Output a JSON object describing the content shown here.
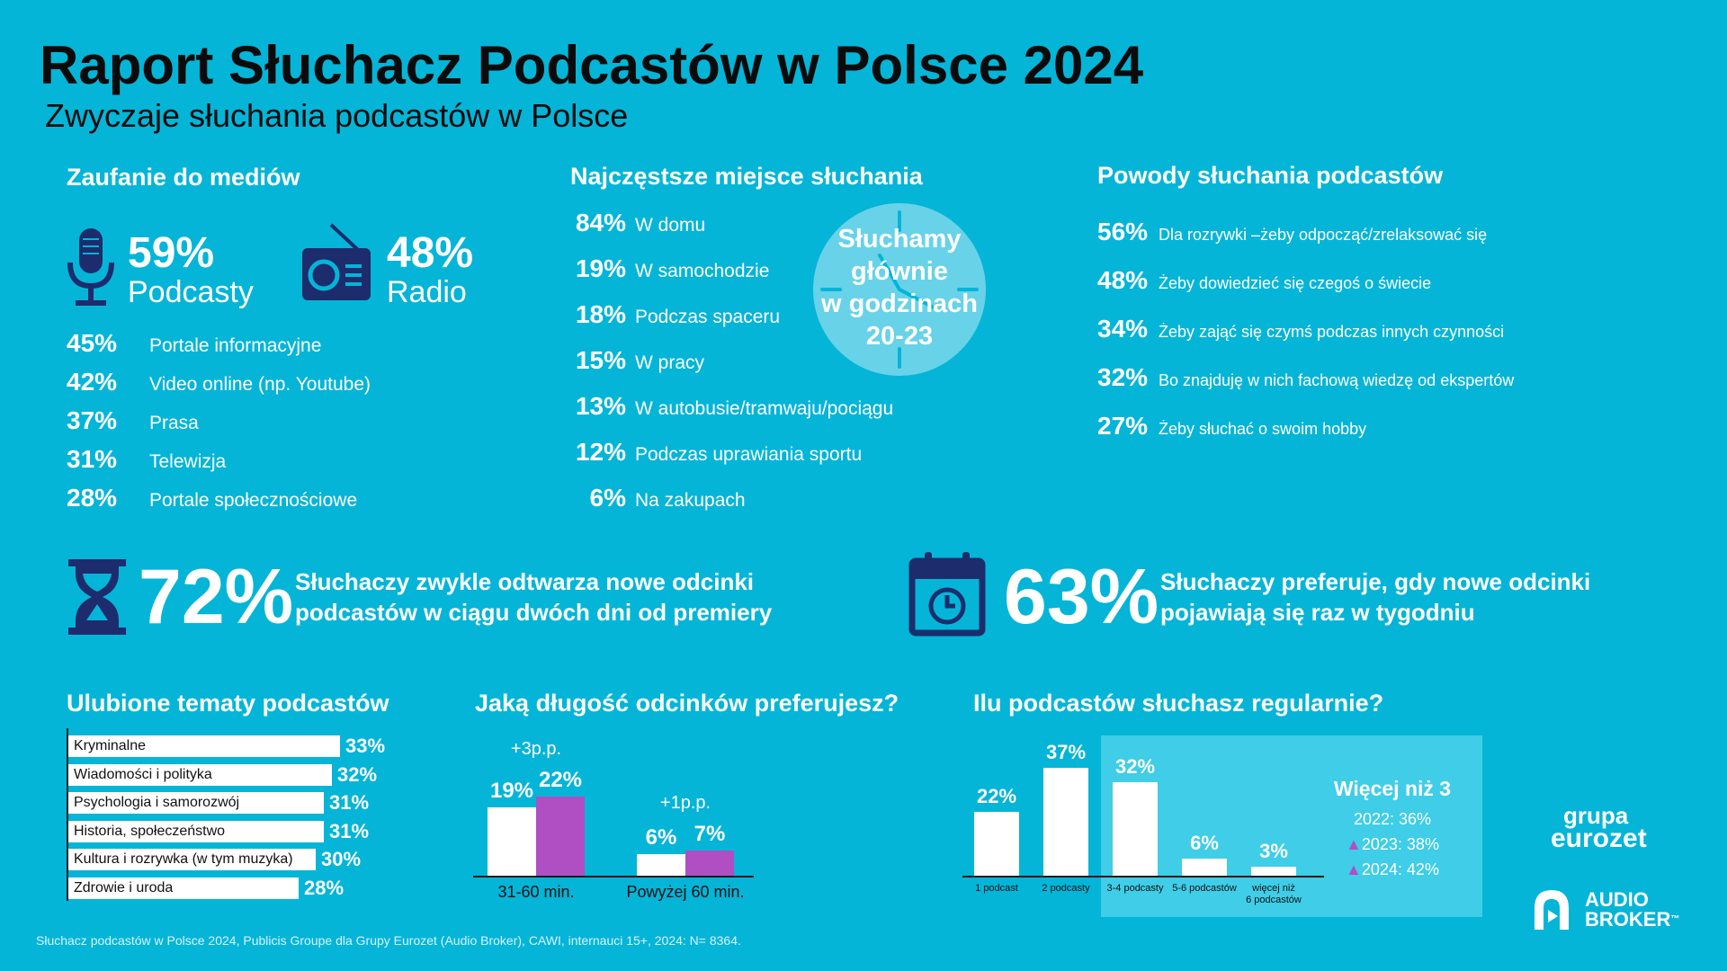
{
  "header": {
    "title": "Raport Słuchacz Podcastów w Polsce 2024",
    "subtitle": "Zwyczaje słuchania podcastów w Polsce"
  },
  "trust": {
    "title": "Zaufanie do mediów",
    "podcasts": {
      "value": "59%",
      "label": "Podcasty"
    },
    "radio": {
      "value": "48%",
      "label": "Radio"
    },
    "items": [
      {
        "value": "45%",
        "label": "Portale informacyjne"
      },
      {
        "value": "42%",
        "label": "Video online (np. Youtube)"
      },
      {
        "value": "37%",
        "label": "Prasa"
      },
      {
        "value": "31%",
        "label": "Telewizja"
      },
      {
        "value": "28%",
        "label": "Portale społecznościowe"
      }
    ]
  },
  "places": {
    "title": "Najczęstsze miejsce słuchania",
    "items": [
      {
        "value": "84%",
        "label": "W domu"
      },
      {
        "value": "19%",
        "label": "W samochodzie"
      },
      {
        "value": "18%",
        "label": "Podczas spaceru"
      },
      {
        "value": "15%",
        "label": "W pracy"
      },
      {
        "value": "13%",
        "label": "W autobusie/tramwaju/pociągu"
      },
      {
        "value": "12%",
        "label": "Podczas uprawiania sportu"
      },
      {
        "value": "6%",
        "label": "Na zakupach"
      }
    ],
    "clock_text": [
      "Słuchamy",
      "głównie",
      "w godzinach",
      "20-23"
    ]
  },
  "reasons": {
    "title": "Powody słuchania podcastów",
    "items": [
      {
        "value": "56%",
        "label": "Dla rozrywki –żeby odpocząć/zrelaksować się"
      },
      {
        "value": "48%",
        "label": "Żeby dowiedzieć się czegoś o świecie"
      },
      {
        "value": "34%",
        "label": "Żeby zająć się czymś podczas innych czynności"
      },
      {
        "value": "32%",
        "label": "Bo znajduję w nich fachową wiedzę od ekspertów"
      },
      {
        "value": "27%",
        "label": "Żeby słuchać o swoim hobby"
      }
    ]
  },
  "stat1": {
    "value": "72%",
    "line1": "Słuchaczy zwykle odtwarza nowe odcinki",
    "line2": "podcastów w ciągu dwóch dni od premiery"
  },
  "stat2": {
    "value": "63%",
    "line1": "Słuchaczy preferuje, gdy nowe odcinki",
    "line2": "pojawiają się raz w tygodniu"
  },
  "topics_title": "Ulubione tematy podcastów",
  "length_title": "Jaką długość odcinków preferujesz?",
  "count_title": "Ilu podcastów słuchasz regularnie?",
  "more_than_3": {
    "title": "Więcej niż 3",
    "lines": [
      "2022: 36%",
      "2023: 38%",
      "2024: 42%"
    ],
    "arrow_color": "#b04fc4"
  },
  "logos": {
    "eurozet_1": "grupa",
    "eurozet_2": "eurozet",
    "audio_1": "AUDIO",
    "audio_2": "BROKER",
    "tm": "™"
  },
  "footnote": "Słuchacz podcastów w Polsce 2024, Publicis Groupe dla Grupy Eurozet (Audio Broker), CAWI, internauci 15+, 2024: N= 8364.",
  "colors": {
    "background": "#04b5d8",
    "navy": "#1d2c6d",
    "purple": "#b04fc4",
    "panel": "#3fcde8"
  },
  "chart_data": [
    {
      "type": "bar",
      "orientation": "horizontal",
      "title": "Ulubione tematy podcastów",
      "categories": [
        "Kryminalne",
        "Wiadomości i polityka",
        "Psychologia i samorozwój",
        "Historia, społeczeństwo",
        "Kultura i rozrywka (w tym muzyka)",
        "Zdrowie i uroda"
      ],
      "values": [
        33,
        32,
        31,
        31,
        30,
        28
      ],
      "labels": [
        "33%",
        "32%",
        "31%",
        "31%",
        "30%",
        "28%"
      ]
    },
    {
      "type": "bar",
      "title": "Jaką długość odcinków preferujesz?",
      "categories": [
        "31-60 min.",
        "Powyżej 60 min."
      ],
      "series": [
        {
          "values": [
            19,
            6
          ],
          "labels": [
            "19%",
            "6%"
          ],
          "color": "#ffffff"
        },
        {
          "values": [
            22,
            7
          ],
          "labels": [
            "22%",
            "7%"
          ],
          "color": "#b04fc4"
        }
      ],
      "annotations": [
        "+3p.p.",
        "+1p.p."
      ]
    },
    {
      "type": "bar",
      "title": "Ilu podcastów słuchasz regularnie?",
      "categories": [
        "1 podcast",
        "2 podcasty",
        "3-4 podcasty",
        "5-6 podcastów",
        "więcej niż 6 podcastów"
      ],
      "category_lines": [
        [
          "1 podcast"
        ],
        [
          "2 podcasty"
        ],
        [
          "3-4 podcasty"
        ],
        [
          "5-6 podcastów"
        ],
        [
          "więcej niż",
          "6 podcastów"
        ]
      ],
      "values": [
        22,
        37,
        32,
        6,
        3
      ],
      "labels": [
        "22%",
        "37%",
        "32%",
        "6%",
        "3%"
      ]
    }
  ]
}
